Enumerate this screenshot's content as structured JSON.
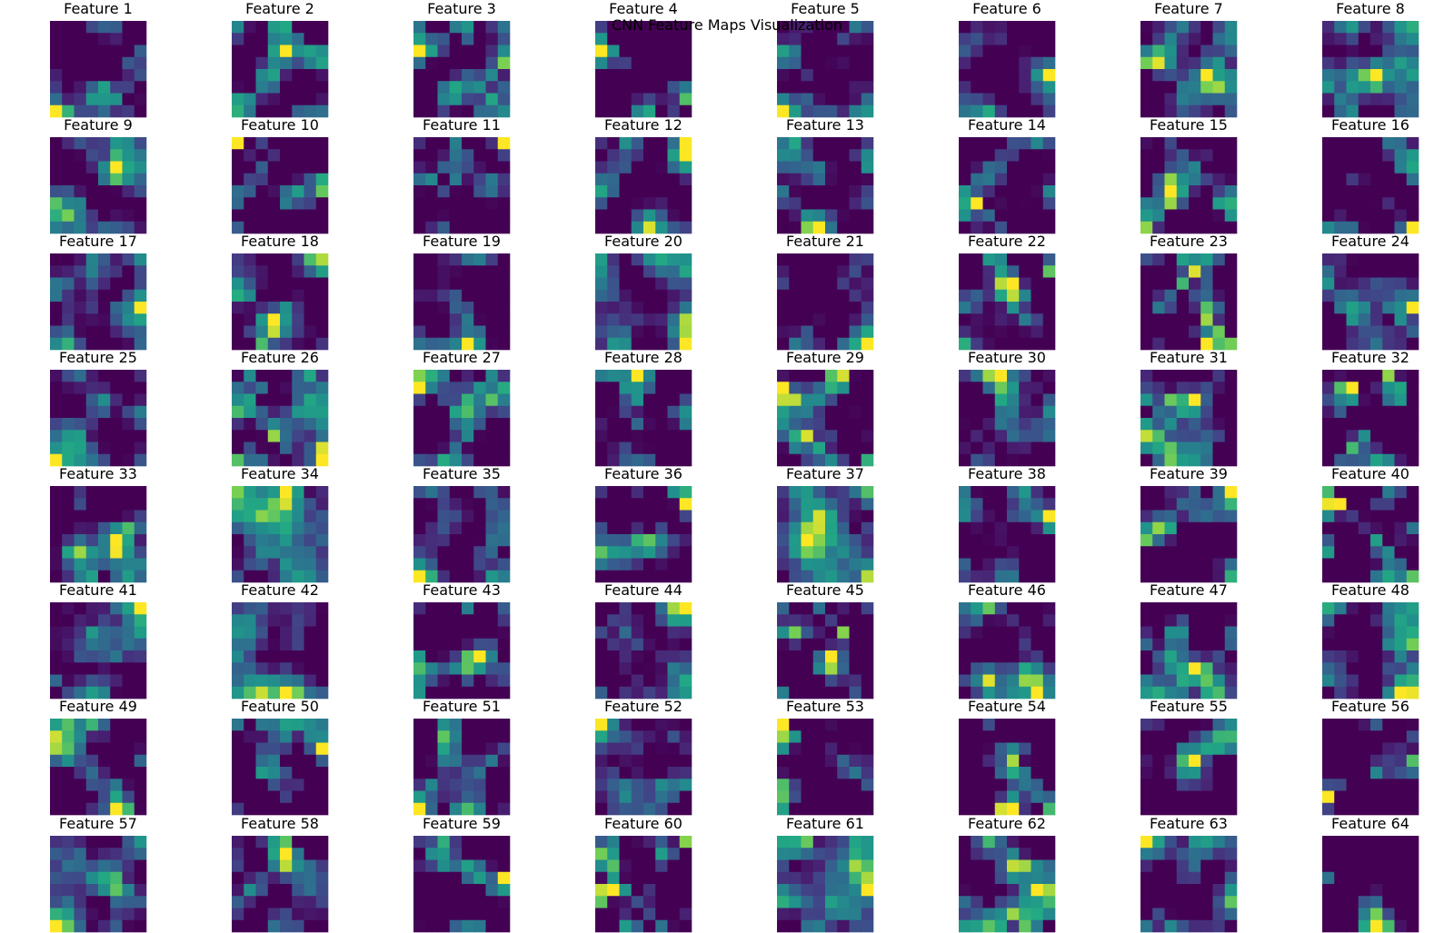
{
  "figure": {
    "title": "CNN Feature Maps Visualization"
  },
  "chart_data": {
    "type": "heatmap",
    "title": "CNN Feature Maps Visualization",
    "grid": false,
    "axes_visible": false,
    "colormap": "viridis",
    "color_range": [
      0,
      1
    ],
    "rows": 8,
    "cols": 8,
    "cell_resolution": [
      8,
      8
    ],
    "panel_titles": [
      "Feature 1",
      "Feature 2",
      "Feature 3",
      "Feature 4",
      "Feature 5",
      "Feature 6",
      "Feature 7",
      "Feature 8",
      "Feature 9",
      "Feature 10",
      "Feature 11",
      "Feature 12",
      "Feature 13",
      "Feature 14",
      "Feature 15",
      "Feature 16",
      "Feature 17",
      "Feature 18",
      "Feature 19",
      "Feature 20",
      "Feature 21",
      "Feature 22",
      "Feature 23",
      "Feature 24",
      "Feature 25",
      "Feature 26",
      "Feature 27",
      "Feature 28",
      "Feature 29",
      "Feature 30",
      "Feature 31",
      "Feature 32",
      "Feature 33",
      "Feature 34",
      "Feature 35",
      "Feature 36",
      "Feature 37",
      "Feature 38",
      "Feature 39",
      "Feature 40",
      "Feature 41",
      "Feature 42",
      "Feature 43",
      "Feature 44",
      "Feature 45",
      "Feature 46",
      "Feature 47",
      "Feature 48",
      "Feature 49",
      "Feature 50",
      "Feature 51",
      "Feature 52",
      "Feature 53",
      "Feature 54",
      "Feature 55",
      "Feature 56",
      "Feature 57",
      "Feature 58",
      "Feature 59",
      "Feature 60",
      "Feature 61",
      "Feature 62",
      "Feature 63",
      "Feature 64"
    ]
  }
}
